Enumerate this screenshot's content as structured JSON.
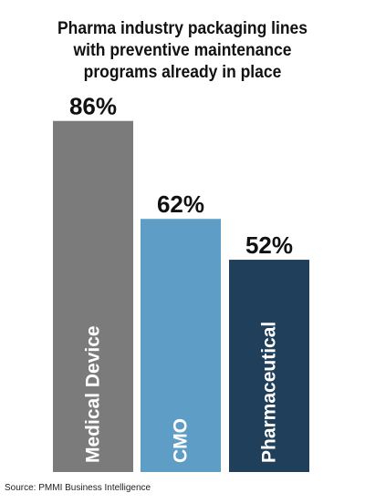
{
  "title_lines": [
    "Pharma industry packaging lines",
    "with preventive maintenance",
    "programs already in place"
  ],
  "source": "Source: PMMI Business Intelligence",
  "colors": {
    "Medical Device": "#7b7b7b",
    "CMO": "#5e9ec6",
    "Pharmaceutical": "#1f3f5b",
    "label_text": "#ffffff",
    "value_text": "#111111"
  },
  "chart_data": {
    "type": "bar",
    "title": "Pharma industry packaging lines with preventive maintenance programs already in place",
    "categories": [
      "Medical Device",
      "CMO",
      "Pharmaceutical"
    ],
    "values": [
      86,
      62,
      52
    ],
    "value_labels": [
      "86%",
      "62%",
      "52%"
    ],
    "xlabel": "",
    "ylabel": "",
    "ylim": [
      0,
      100
    ],
    "grid": false,
    "legend": "none"
  }
}
